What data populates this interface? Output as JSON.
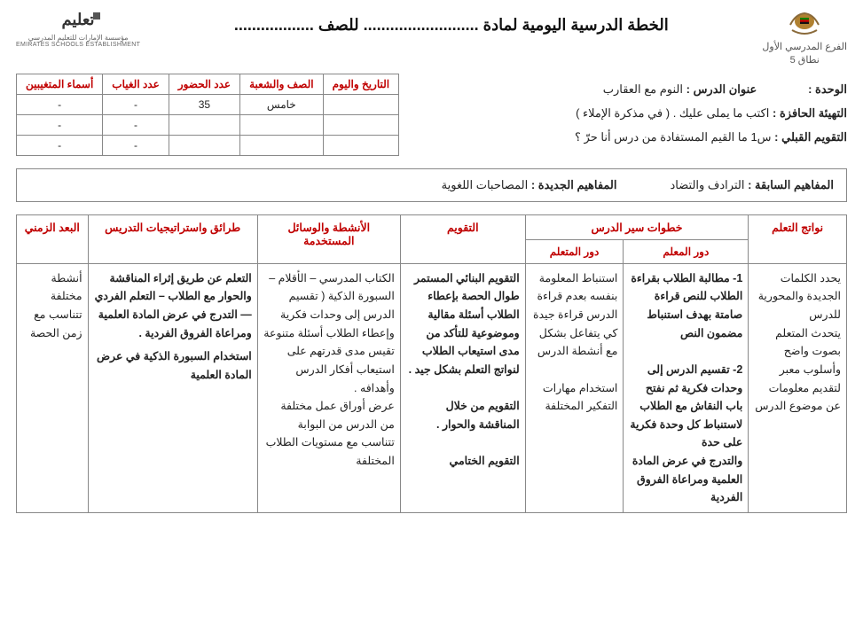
{
  "header": {
    "title_prefix": "الخطة الدرسية اليومية لمادة",
    "title_dots1": "..........................",
    "title_mid": "للصف",
    "title_dots2": "..................",
    "branch_line1": "الفرع المدرسي الأول",
    "branch_line2": "نطاق 5",
    "right_logo_caption": "",
    "left_logo_line1": "تعليم",
    "left_logo_line2": "مؤسسة الإمارات للتعليم المدرسي",
    "left_logo_line3": "EMIRATES SCHOOLS ESTABLISHMENT"
  },
  "info": {
    "unit_label": "الوحدة :",
    "unit_value": "",
    "lesson_label": "عنوان الدرس :",
    "lesson_value": "النوم مع العقارب",
    "warmup_label": "التهيئة الحافزة :",
    "warmup_value": "اكتب ما يملى عليك . ( في مذكرة الإملاء )",
    "pre_assess_label": "التقويم القبلي :",
    "pre_assess_value": "س1 ما القيم المستفادة من درس أنا حرّ ؟"
  },
  "attendance": {
    "headers": {
      "date": "التاريخ واليوم",
      "class": "الصف والشعبة",
      "present": "عدد الحضور",
      "absent": "عدد الغياب",
      "absentees": "أسماء المتغيبين"
    },
    "rows": [
      {
        "date": "",
        "class": "خامس",
        "present": "35",
        "absent": "-",
        "absentees": "-"
      },
      {
        "date": "",
        "class": "",
        "present": "",
        "absent": "-",
        "absentees": "-"
      },
      {
        "date": "",
        "class": "",
        "present": "",
        "absent": "-",
        "absentees": "-"
      }
    ]
  },
  "concepts": {
    "prev_label": "المفاهيم السابقة :",
    "prev_value": "الترادف والتضاد",
    "new_label": "المفاهيم الجديدة :",
    "new_value": "المصاحبات اللغوية"
  },
  "main": {
    "headers": {
      "outcomes": "نواتج التعلم",
      "steps": "خطوات سير الدرس",
      "teacher": "دور المعلم",
      "learner": "دور المتعلم",
      "assessment": "التقويم",
      "activities": "الأنشطة والوسائل المستخدمة",
      "strategies": "طرائق واستراتيجيات التدريس",
      "time": "البعد الزمني"
    },
    "cells": {
      "outcomes": "يحدد الكلمات الجديدة والمحورية للدرس\nيتحدث المتعلم بصوت واضح وأسلوب معبر لتقديم معلومات عن موضوع الدرس",
      "teacher": "1- مطالبة الطلاب بقراءة الطلاب للنص قراءة صامتة بهدف استنباط مضمون النص\n\n2- تقسيم الدرس إلى وحدات فكرية ثم نفتح باب النقاش مع الطلاب لاستنباط كل وحدة فكرية على حدة\nوالتدرج في عرض المادة العلمية ومراعاة الفروق الفردية",
      "learner": "استنباط المعلومة بنفسه بعدم قراءة الدرس قراءة جيدة كي يتفاعل بشكل مع أنشطة الدرس\n\nاستخدام مهارات التفكير المختلفة",
      "assessment": "التقويم البنائي المستمر طوال الحصة بإعطاء الطلاب أسئلة مقالية وموضوعية للتأكد من مدى استيعاب الطلاب لنواتج التعلم بشكل جيد .\n\nالتقويم من خلال المناقشة والحوار .\n\nالتقويم الختامي",
      "activities": "الكتاب المدرسي – الأقلام – السبورة الذكية ( تقسيم الدرس إلى وحدات فكرية وإعطاء الطلاب أسئلة متنوعة تقيس مدى قدرتهم على استيعاب أفكار الدرس وأهدافه .\nعرض أوراق عمل مختلفة من الدرس من البوابة تتناسب مع مستويات الطلاب المختلفة",
      "strategies_p1": "التعلم عن طريق إثراء المناقشة والحوار مع الطلاب – التعلم الفردي — التدرج في عرض المادة العلمية ومراعاة الفروق الفردية .",
      "strategies_p2": "استخدام السبورة الذكية في عرض المادة العلمية",
      "time": "أنشطة مختلفة تتناسب مع زمن الحصة"
    }
  },
  "colors": {
    "header_red": "#c00000",
    "border": "#888888",
    "text": "#222222",
    "bg": "#ffffff"
  }
}
